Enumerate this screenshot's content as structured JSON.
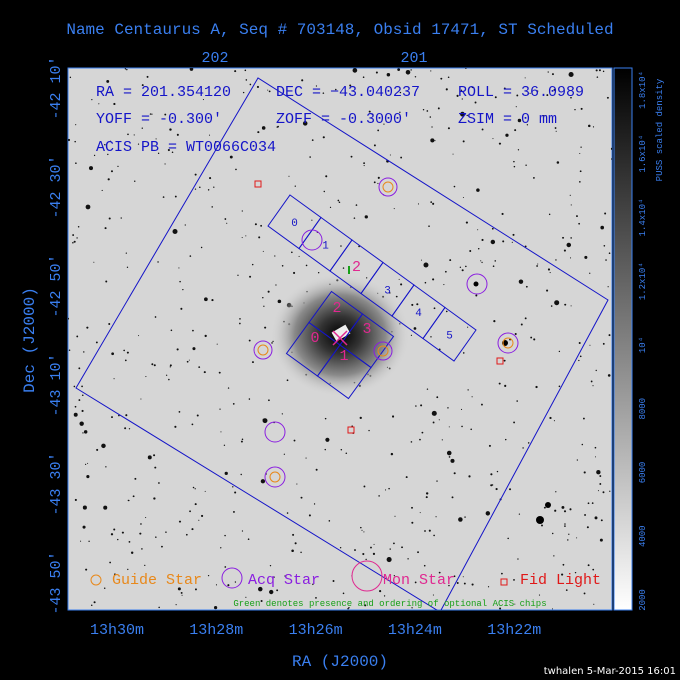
{
  "header": {
    "title": "Name Centaurus A, Seq # 703148, Obsid 17471, ST Scheduled"
  },
  "top_axis": {
    "labels": [
      "202",
      "201"
    ]
  },
  "info": {
    "ra": "RA = 201.354120",
    "dec": "DEC = −43.040237",
    "roll": "ROLL = 36.0989",
    "yoff": "YOFF = -0.300'",
    "zoff": "ZOFF = -0.3000'",
    "zsim": "ZSIM = 0 mm",
    "acis": "ACIS PB = WT0066C034"
  },
  "y_axis": {
    "title": "Dec (J2000)",
    "labels": [
      "-42 10'",
      "-42 30'",
      "-42 50'",
      "-43 10'",
      "-43 30'",
      "-43 50'"
    ]
  },
  "x_axis": {
    "title": "RA (J2000)",
    "labels": [
      "13h30m",
      "13h28m",
      "13h26m",
      "13h24m",
      "13h22m"
    ]
  },
  "colorbar": {
    "title": "PUSS scaled density",
    "labels": [
      "2000",
      "4000",
      "6000",
      "8000",
      "10⁴",
      "1.2x10⁴",
      "1.4x10⁴",
      "1.6x10⁴",
      "1.8x10⁴"
    ]
  },
  "chips": {
    "acis_s": [
      "0",
      "1",
      "2",
      "3",
      "4",
      "5"
    ],
    "acis_i": [
      "0",
      "1",
      "2",
      "3"
    ]
  },
  "legend": [
    "Guide Star",
    "Acq Star",
    "Mon Star",
    "Fid Light"
  ],
  "note": "Green denotes presence and ordering of optional ACIS chips",
  "footer": "twhalen  5-Mar-2015 16:01"
}
